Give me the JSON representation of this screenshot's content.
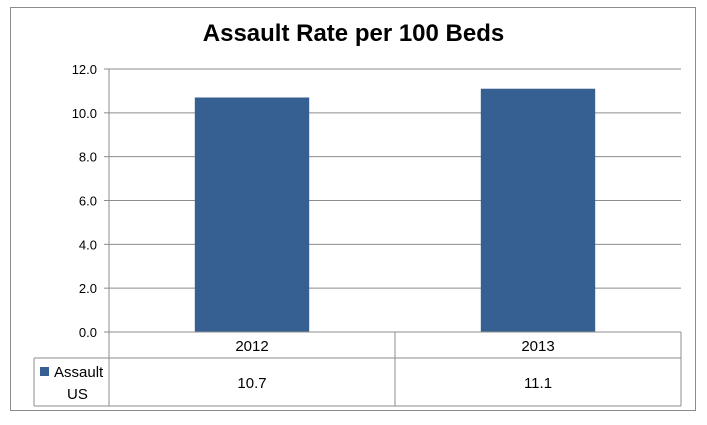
{
  "chart_data": {
    "type": "bar",
    "title": "Assault Rate per 100 Beds",
    "categories": [
      "2012",
      "2013"
    ],
    "series": [
      {
        "name": "Assault US",
        "values": [
          10.7,
          11.1
        ],
        "value_labels": [
          "10.7",
          "11.1"
        ],
        "color": "#376092"
      }
    ],
    "ylim": [
      0,
      12
    ],
    "yticks": [
      "0.0",
      "2.0",
      "4.0",
      "6.0",
      "8.0",
      "10.0",
      "12.0"
    ],
    "legend_lines": [
      "Assault",
      "US"
    ],
    "grid": true,
    "legend_placement": "data-table-left",
    "has_data_table": true
  }
}
